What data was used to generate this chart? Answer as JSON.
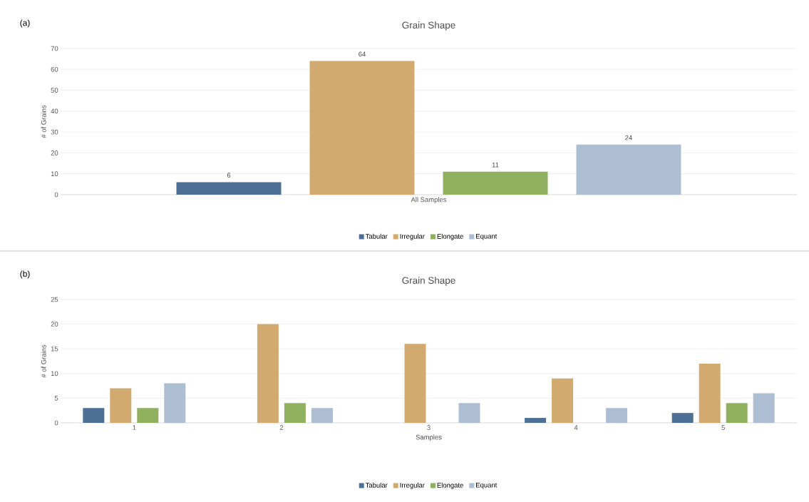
{
  "chart_data": [
    {
      "type": "bar",
      "title": "Grain Shape",
      "ylabel": "# of Grains",
      "annotations": [
        "(a)"
      ],
      "categories": [
        "All Samples"
      ],
      "series": [
        {
          "name": "Tabular",
          "color": "#4e6f96",
          "values": [
            6
          ]
        },
        {
          "name": "Irregular",
          "color": "#d2aa6f",
          "values": [
            64
          ]
        },
        {
          "name": "Elongate",
          "color": "#8fb05f",
          "values": [
            11
          ]
        },
        {
          "name": "Equant",
          "color": "#adbdd2",
          "values": [
            24
          ]
        }
      ],
      "ylim": [
        0,
        70
      ],
      "yticks": [
        0,
        10,
        20,
        30,
        40,
        50,
        60,
        70
      ],
      "grid": "y",
      "legend": "bottom",
      "data_labels": true
    },
    {
      "type": "bar",
      "title": "Grain Shape",
      "xlabel": "Samples",
      "ylabel": "# of Grains",
      "annotations": [
        "(b)"
      ],
      "categories": [
        "1",
        "2",
        "3",
        "4",
        "5"
      ],
      "series": [
        {
          "name": "Tabular",
          "color": "#4e6f96",
          "values": [
            3,
            0,
            0,
            1,
            2
          ]
        },
        {
          "name": "Irregular",
          "color": "#d2aa6f",
          "values": [
            7,
            20,
            16,
            9,
            12
          ]
        },
        {
          "name": "Elongate",
          "color": "#8fb05f",
          "values": [
            3,
            4,
            0,
            0,
            4
          ]
        },
        {
          "name": "Equant",
          "color": "#adbdd2",
          "values": [
            8,
            3,
            4,
            3,
            6
          ]
        }
      ],
      "ylim": [
        0,
        25
      ],
      "yticks": [
        0,
        5,
        10,
        15,
        20,
        25
      ],
      "grid": "y",
      "legend": "bottom"
    }
  ]
}
